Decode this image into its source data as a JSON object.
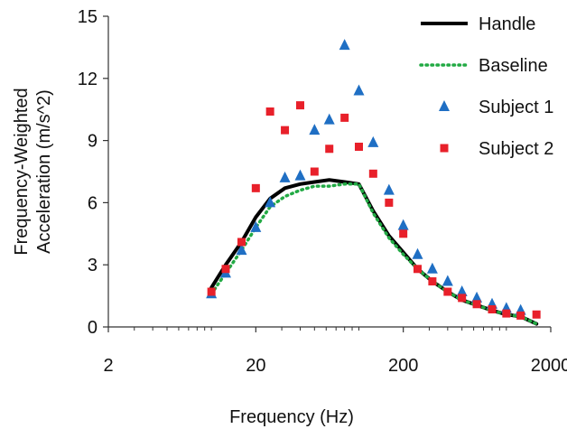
{
  "chart_data": {
    "type": "scatter",
    "x_scale": "log",
    "xlim": [
      2,
      2000
    ],
    "ylim": [
      0,
      15
    ],
    "x_ticks": [
      2,
      20,
      200,
      2000
    ],
    "x_tick_labels": [
      "2",
      "20",
      "200",
      "2000"
    ],
    "y_ticks": [
      0,
      3,
      6,
      9,
      12,
      15
    ],
    "y_tick_labels": [
      "0",
      "3",
      "6",
      "9",
      "12",
      "15"
    ],
    "xlabel": "Frequency (Hz)",
    "ylabel_line1": "Frequency-Weighted",
    "ylabel_line2": "Acceleration (m/s^2)",
    "grid": false,
    "legend_position": "top-right",
    "series": [
      {
        "name": "Handle",
        "style": "line",
        "color": "#000000",
        "x": [
          10,
          12.5,
          16,
          20,
          25,
          31.5,
          40,
          50,
          63,
          80,
          100,
          125,
          160,
          200,
          250,
          315,
          400,
          500,
          630,
          800,
          1000,
          1250,
          1600
        ],
        "y": [
          1.9,
          3.0,
          4.1,
          5.3,
          6.2,
          6.7,
          6.9,
          7.0,
          7.1,
          7.0,
          6.9,
          5.6,
          4.4,
          3.6,
          2.8,
          2.2,
          1.7,
          1.3,
          1.05,
          0.8,
          0.6,
          0.5,
          0.15
        ]
      },
      {
        "name": "Baseline",
        "style": "dotted",
        "color": "#22aa44",
        "x": [
          10,
          12.5,
          16,
          20,
          25,
          31.5,
          40,
          50,
          63,
          80,
          100,
          125,
          160,
          200,
          250,
          315,
          400,
          500,
          630,
          800,
          1000,
          1250,
          1600
        ],
        "y": [
          1.6,
          2.6,
          3.7,
          4.8,
          5.8,
          6.3,
          6.6,
          6.8,
          6.8,
          6.9,
          6.9,
          5.5,
          4.3,
          3.5,
          2.8,
          2.2,
          1.7,
          1.3,
          1.05,
          0.8,
          0.6,
          0.5,
          0.15
        ]
      },
      {
        "name": "Subject 1",
        "style": "triangle",
        "color": "#1f6fc4",
        "x": [
          10,
          12.5,
          16,
          20,
          25,
          31.5,
          40,
          50,
          63,
          80,
          100,
          125,
          160,
          200,
          250,
          315,
          400,
          500,
          630,
          800,
          1000,
          1250
        ],
        "y": [
          1.6,
          2.6,
          3.7,
          4.8,
          6.0,
          7.2,
          7.3,
          9.5,
          10.0,
          13.6,
          11.4,
          8.9,
          6.6,
          4.9,
          3.5,
          2.8,
          2.2,
          1.7,
          1.4,
          1.1,
          0.9,
          0.8
        ]
      },
      {
        "name": "Subject 2",
        "style": "square",
        "color": "#e8202a",
        "x": [
          10,
          12.5,
          16,
          20,
          25,
          31.5,
          40,
          50,
          63,
          80,
          100,
          125,
          160,
          200,
          250,
          315,
          400,
          500,
          630,
          800,
          1000,
          1250,
          1600
        ],
        "y": [
          1.7,
          2.8,
          4.1,
          6.7,
          10.4,
          9.5,
          10.7,
          7.5,
          8.6,
          10.1,
          8.7,
          7.4,
          6.0,
          4.5,
          2.8,
          2.2,
          1.7,
          1.4,
          1.1,
          0.85,
          0.65,
          0.55,
          0.6
        ]
      }
    ]
  }
}
